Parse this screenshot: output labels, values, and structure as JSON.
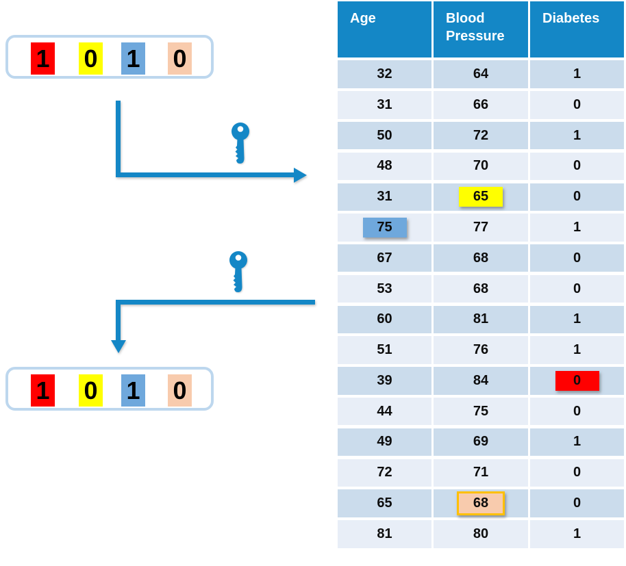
{
  "bit_string_top": {
    "bits": [
      {
        "digit": "1",
        "color": "#FF0000",
        "name": "red"
      },
      {
        "digit": "0",
        "color": "#FFFF00",
        "name": "yellow"
      },
      {
        "digit": "1",
        "color": "#6FA8DC",
        "name": "blue"
      },
      {
        "digit": "0",
        "color": "#F8CBAD",
        "name": "peach"
      }
    ]
  },
  "bit_string_bottom": {
    "bits": [
      {
        "digit": "1",
        "color": "#FF0000",
        "name": "red"
      },
      {
        "digit": "0",
        "color": "#FFFF00",
        "name": "yellow"
      },
      {
        "digit": "1",
        "color": "#6FA8DC",
        "name": "blue"
      },
      {
        "digit": "0",
        "color": "#F8CBAD",
        "name": "peach"
      }
    ]
  },
  "icons": {
    "key_top": "key-icon",
    "key_bottom": "key-icon"
  },
  "table": {
    "headers": [
      {
        "label": "Age"
      },
      {
        "label": "Blood Pressure"
      },
      {
        "label": "Diabetes"
      }
    ],
    "rows": [
      [
        "32",
        "64",
        "1"
      ],
      [
        "31",
        "66",
        "0"
      ],
      [
        "50",
        "72",
        "1"
      ],
      [
        "48",
        "70",
        "0"
      ],
      [
        "31",
        "65",
        "0"
      ],
      [
        "75",
        "77",
        "1"
      ],
      [
        "67",
        "68",
        "0"
      ],
      [
        "53",
        "68",
        "0"
      ],
      [
        "60",
        "81",
        "1"
      ],
      [
        "51",
        "76",
        "1"
      ],
      [
        "39",
        "84",
        "0"
      ],
      [
        "44",
        "75",
        "0"
      ],
      [
        "49",
        "69",
        "1"
      ],
      [
        "72",
        "71",
        "0"
      ],
      [
        "65",
        "68",
        "0"
      ],
      [
        "81",
        "80",
        "1"
      ]
    ],
    "highlights": {
      "4-1": {
        "bg": "#FFFF00",
        "name": "yellow-highlight"
      },
      "5-0": {
        "bg": "#6FA8DC",
        "name": "blue-highlight"
      },
      "10-2": {
        "bg": "#FF0000",
        "name": "red-highlight"
      },
      "14-1": {
        "bg": "#F8CBAD",
        "border": "#FFC000",
        "name": "peach-highlight"
      }
    }
  },
  "colors": {
    "header_bg": "#1487C6",
    "row_dark": "#CBDCEC",
    "row_light": "#E8EEF7",
    "arrow": "#1487C6",
    "box_border": "#BDD7EE",
    "gold_border": "#FFC000"
  }
}
